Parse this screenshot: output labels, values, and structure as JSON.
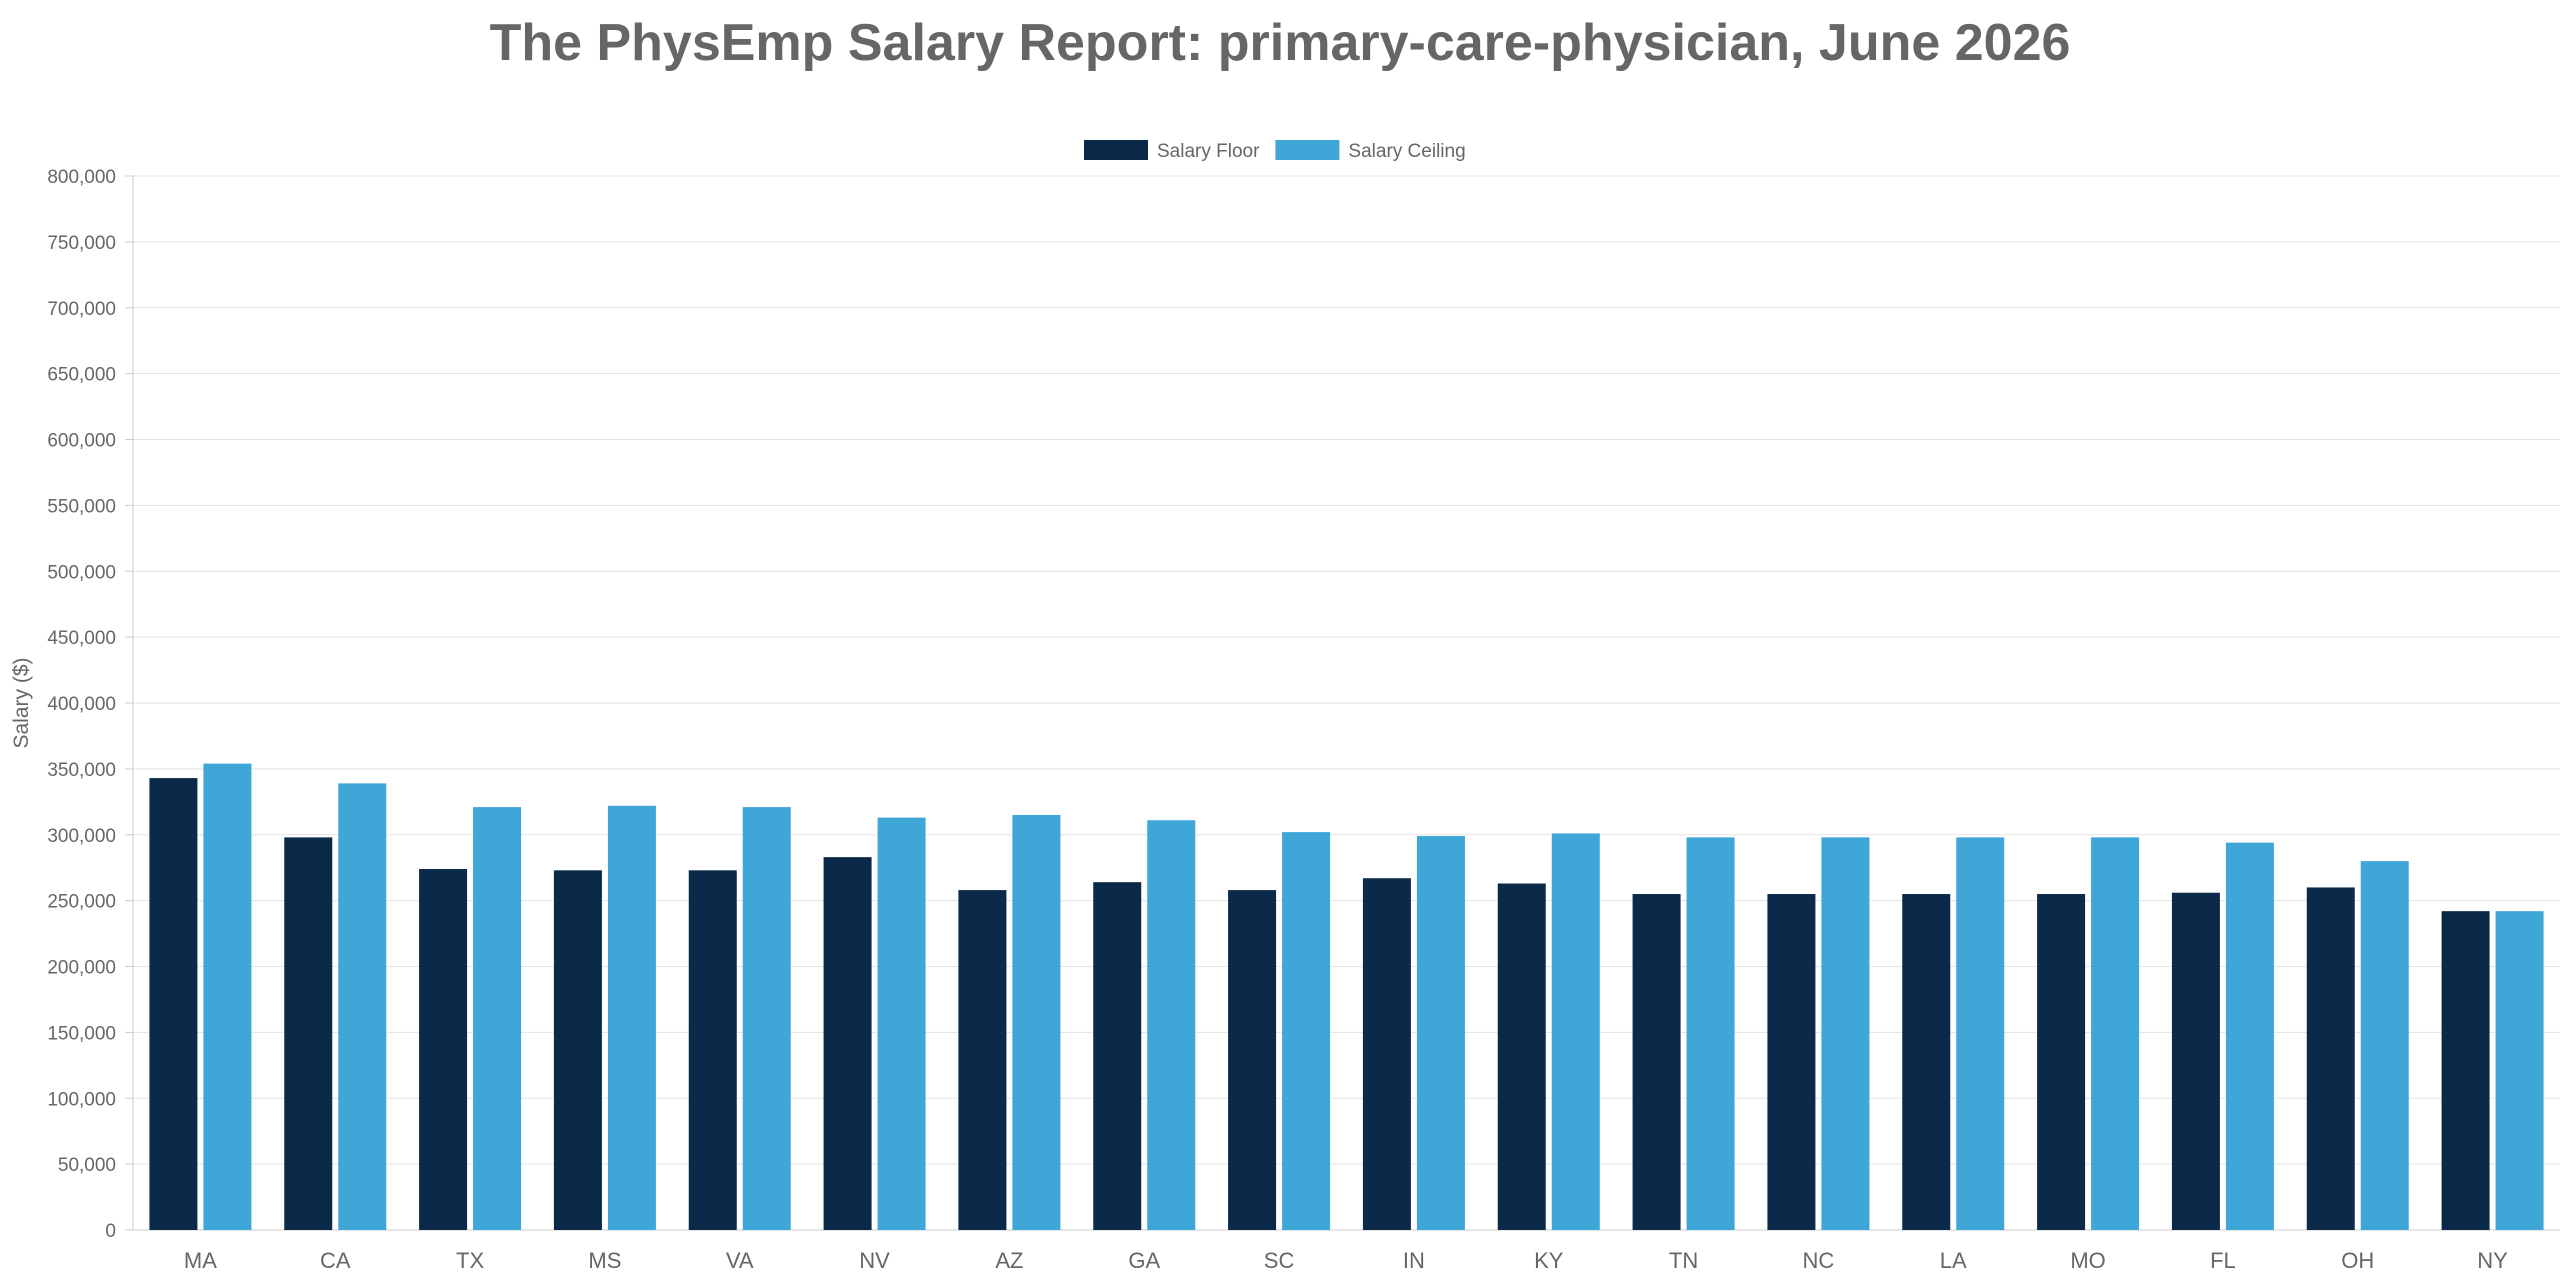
{
  "chart_data": {
    "type": "bar",
    "title": "The PhysEmp Salary Report: primary-care-physician, June 2026",
    "xlabel": "",
    "ylabel": "Salary ($)",
    "ylim": [
      0,
      800000
    ],
    "yticks": [
      0,
      50000,
      100000,
      150000,
      200000,
      250000,
      300000,
      350000,
      400000,
      450000,
      500000,
      550000,
      600000,
      650000,
      700000,
      750000,
      800000
    ],
    "ytick_labels": [
      "0",
      "50,000",
      "100,000",
      "150,000",
      "200,000",
      "250,000",
      "300,000",
      "350,000",
      "400,000",
      "450,000",
      "500,000",
      "550,000",
      "600,000",
      "650,000",
      "700,000",
      "750,000",
      "800,000"
    ],
    "grid": true,
    "legend_position": "top-center",
    "categories": [
      "MA",
      "CA",
      "TX",
      "MS",
      "VA",
      "NV",
      "AZ",
      "GA",
      "SC",
      "IN",
      "KY",
      "TN",
      "NC",
      "LA",
      "MO",
      "FL",
      "OH",
      "NY"
    ],
    "series": [
      {
        "name": "Salary Floor",
        "color": "#0b2948",
        "values": [
          343000,
          298000,
          274000,
          273000,
          273000,
          283000,
          258000,
          264000,
          258000,
          267000,
          263000,
          255000,
          255000,
          255000,
          255000,
          256000,
          260000,
          242000
        ]
      },
      {
        "name": "Salary Ceiling",
        "color": "#3fa6d8",
        "values": [
          354000,
          339000,
          321000,
          322000,
          321000,
          313000,
          315000,
          311000,
          302000,
          299000,
          301000,
          298000,
          298000,
          298000,
          298000,
          294000,
          280000,
          242000
        ]
      }
    ]
  }
}
